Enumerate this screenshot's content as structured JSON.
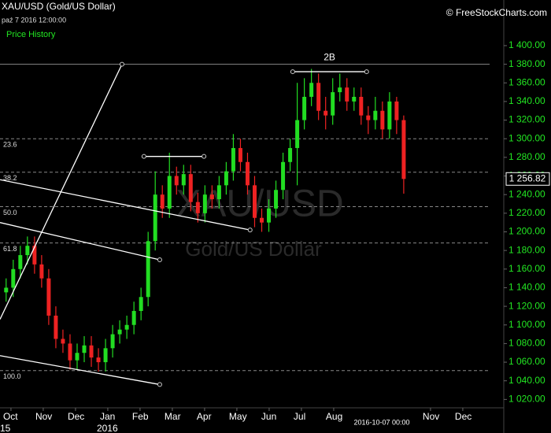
{
  "chart_data": {
    "type": "candlestick",
    "title": "XAU/USD (Gold/US Dollar)",
    "subtitle": "paź 7 2016 12:00:00",
    "legend_label": "Price History",
    "credit": "© FreeStockCharts.com",
    "watermark": [
      "XAU/USD",
      "Gold/US Dollar"
    ],
    "cursor_date": "2016-10-07 00:00",
    "annotation": {
      "text": "2B",
      "x": 9.87,
      "y": 1387
    },
    "last_price": {
      "value": 1256.82,
      "label": "1 256.82"
    },
    "up_color": "#22dd22",
    "down_color": "#ee2222",
    "x": [
      -0.15,
      0.07,
      0.29,
      0.51,
      0.73,
      0.95,
      1.17,
      1.39,
      1.61,
      1.83,
      2.05,
      2.27,
      2.49,
      2.71,
      2.93,
      3.15,
      3.37,
      3.59,
      3.81,
      4.03,
      4.25,
      4.47,
      4.69,
      4.91,
      5.13,
      5.35,
      5.57,
      5.79,
      6.01,
      6.23,
      6.45,
      6.67,
      6.89,
      7.11,
      7.33,
      7.55,
      7.77,
      7.99,
      8.21,
      8.43,
      8.65,
      8.87,
      9.09,
      9.31,
      9.53,
      9.75,
      9.97,
      10.19,
      10.41,
      10.63,
      10.85,
      11.07,
      11.29,
      11.51,
      11.73,
      11.95,
      12.17
    ],
    "open": [
      1135,
      1140,
      1160,
      1175,
      1185,
      1165,
      1150,
      1110,
      1085,
      1080,
      1062,
      1070,
      1078,
      1065,
      1060,
      1075,
      1090,
      1095,
      1100,
      1115,
      1130,
      1190,
      1240,
      1225,
      1260,
      1250,
      1262,
      1232,
      1220,
      1240,
      1235,
      1250,
      1265,
      1290,
      1275,
      1250,
      1215,
      1210,
      1225,
      1245,
      1275,
      1290,
      1320,
      1345,
      1360,
      1330,
      1325,
      1350,
      1355,
      1340,
      1345,
      1325,
      1320,
      1330,
      1310,
      1340,
      1320
    ],
    "high": [
      1150,
      1170,
      1185,
      1195,
      1195,
      1175,
      1160,
      1120,
      1095,
      1090,
      1080,
      1088,
      1088,
      1075,
      1085,
      1100,
      1105,
      1110,
      1125,
      1140,
      1200,
      1265,
      1250,
      1285,
      1270,
      1272,
      1272,
      1242,
      1250,
      1250,
      1260,
      1275,
      1305,
      1300,
      1285,
      1260,
      1225,
      1235,
      1255,
      1285,
      1300,
      1360,
      1365,
      1375,
      1370,
      1345,
      1365,
      1370,
      1365,
      1355,
      1355,
      1335,
      1345,
      1340,
      1350,
      1345,
      1325
    ],
    "low": [
      1125,
      1130,
      1150,
      1165,
      1155,
      1140,
      1100,
      1075,
      1070,
      1052,
      1052,
      1060,
      1055,
      1050,
      1050,
      1065,
      1080,
      1085,
      1090,
      1105,
      1120,
      1180,
      1215,
      1215,
      1240,
      1240,
      1222,
      1210,
      1210,
      1225,
      1225,
      1240,
      1255,
      1265,
      1240,
      1205,
      1200,
      1200,
      1215,
      1235,
      1265,
      1250,
      1310,
      1335,
      1320,
      1310,
      1315,
      1340,
      1330,
      1330,
      1315,
      1305,
      1310,
      1300,
      1300,
      1305,
      1241
    ],
    "close": [
      1140,
      1160,
      1175,
      1185,
      1165,
      1150,
      1110,
      1085,
      1080,
      1062,
      1070,
      1078,
      1065,
      1060,
      1075,
      1090,
      1095,
      1100,
      1115,
      1130,
      1190,
      1240,
      1225,
      1260,
      1250,
      1262,
      1232,
      1220,
      1240,
      1235,
      1250,
      1265,
      1290,
      1275,
      1250,
      1215,
      1210,
      1225,
      1245,
      1275,
      1290,
      1320,
      1345,
      1360,
      1330,
      1325,
      1350,
      1355,
      1340,
      1345,
      1325,
      1320,
      1330,
      1310,
      1340,
      1320,
      1256.82
    ],
    "xlim": [
      -0.34,
      15.27
    ],
    "ylim": [
      1011,
      1449
    ],
    "xticks": [
      {
        "value": 0,
        "label": "Oct"
      },
      {
        "value": 1,
        "label": "Nov"
      },
      {
        "value": 2,
        "label": "Dec"
      },
      {
        "value": 3,
        "label": "Jan"
      },
      {
        "value": 4,
        "label": "Feb"
      },
      {
        "value": 5,
        "label": "Mar"
      },
      {
        "value": 6,
        "label": "Apr"
      },
      {
        "value": 7,
        "label": "May"
      },
      {
        "value": 8,
        "label": "Jun"
      },
      {
        "value": 9,
        "label": "Jul"
      },
      {
        "value": 10,
        "label": "Aug"
      },
      {
        "value": 13,
        "label": "Nov"
      },
      {
        "value": 14,
        "label": "Dec"
      }
    ],
    "year_labels": [
      {
        "value": 0,
        "label": "15"
      },
      {
        "value": 3,
        "label": "2016"
      }
    ],
    "yticks": [
      {
        "value": 1020,
        "label": "1 020.00"
      },
      {
        "value": 1040,
        "label": "1 040.00"
      },
      {
        "value": 1060,
        "label": "1 060.00"
      },
      {
        "value": 1080,
        "label": "1 080.00"
      },
      {
        "value": 1100,
        "label": "1 100.00"
      },
      {
        "value": 1120,
        "label": "1 120.00"
      },
      {
        "value": 1140,
        "label": "1 140.00"
      },
      {
        "value": 1160,
        "label": "1 160.00"
      },
      {
        "value": 1180,
        "label": "1 180.00"
      },
      {
        "value": 1200,
        "label": "1 200.00"
      },
      {
        "value": 1220,
        "label": "1 220.00"
      },
      {
        "value": 1240,
        "label": "1 240.00"
      },
      {
        "value": 1260,
        "label": "1 260.00"
      },
      {
        "value": 1280,
        "label": "1 280.00"
      },
      {
        "value": 1300,
        "label": "1 300.00"
      },
      {
        "value": 1320,
        "label": "1 320.00"
      },
      {
        "value": 1340,
        "label": "1 340.00"
      },
      {
        "value": 1360,
        "label": "1 360.00"
      },
      {
        "value": 1380,
        "label": "1 380.00"
      },
      {
        "value": 1400,
        "label": "1 400.00"
      }
    ],
    "fib_levels": [
      {
        "value": 1300,
        "label": "23.6"
      },
      {
        "value": 1264,
        "label": "38.2"
      },
      {
        "value": 1227,
        "label": "50.0"
      },
      {
        "value": 1188,
        "label": "61.8"
      },
      {
        "value": 1051,
        "label": "100.0"
      }
    ],
    "solid_levels": [
      1380
    ],
    "trendlines": [
      {
        "x": [
          -0.34,
          3.44
        ],
        "y": [
          1106,
          1380
        ]
      },
      {
        "x": [
          -0.34,
          7.41
        ],
        "y": [
          1256,
          1202
        ]
      },
      {
        "x": [
          -0.34,
          4.61
        ],
        "y": [
          1210,
          1170
        ]
      },
      {
        "x": [
          -0.34,
          4.61
        ],
        "y": [
          1067,
          1036
        ]
      },
      {
        "x": [
          4.12,
          5.98
        ],
        "y": [
          1281,
          1281
        ]
      },
      {
        "x": [
          8.73,
          11.02
        ],
        "y": [
          1372,
          1372
        ]
      }
    ]
  }
}
